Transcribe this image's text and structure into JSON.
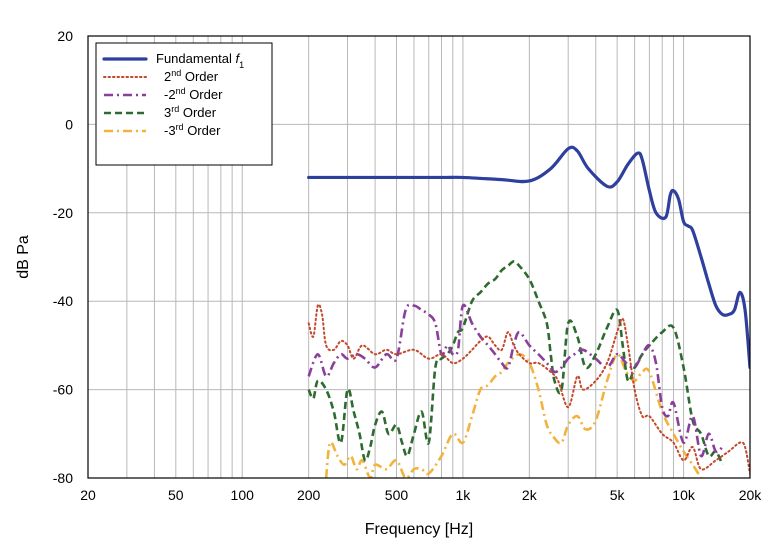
{
  "chart_data": {
    "type": "line",
    "x_scale": "log",
    "xlim": [
      20,
      20000
    ],
    "ylim": [
      -80,
      20
    ],
    "xlabel": "Frequency [Hz]",
    "ylabel": "dB Pa",
    "grid": true,
    "legend_position": "top-left",
    "x_ticks": [
      20,
      50,
      100,
      200,
      500,
      1000,
      2000,
      5000,
      10000,
      20000
    ],
    "x_tick_labels": [
      "20",
      "50",
      "100",
      "200",
      "500",
      "1k",
      "2k",
      "5k",
      "10k",
      "20k"
    ],
    "y_ticks": [
      -80,
      -60,
      -40,
      -20,
      0,
      20
    ],
    "y_tick_labels": [
      "-80",
      "-60",
      "-40",
      "-20",
      "0",
      "20"
    ],
    "series": [
      {
        "name": "Fundamental f1",
        "legend": {
          "main": "Fundamental ",
          "italic": "f",
          "sub": "1"
        },
        "color": "#2e3f9e",
        "dash": "solid",
        "x": [
          200,
          300,
          500,
          800,
          1000,
          1500,
          2000,
          2500,
          3000,
          3300,
          3700,
          4500,
          5000,
          5600,
          6200,
          6500,
          7000,
          7500,
          8300,
          8700,
          9000,
          9500,
          10000,
          10500,
          11000,
          12000,
          13000,
          14000,
          15000,
          16000,
          17000,
          18000,
          19000,
          20000
        ],
        "y": [
          -12,
          -12,
          -12,
          -12,
          -12,
          -12.5,
          -12.8,
          -10,
          -5.5,
          -6,
          -10,
          -14,
          -13,
          -9,
          -6.5,
          -8,
          -15,
          -20,
          -21,
          -16,
          -15,
          -17,
          -22,
          -23,
          -24,
          -30,
          -36,
          -41,
          -43,
          -43,
          -42,
          -38,
          -42,
          -55
        ]
      },
      {
        "name": "2nd Order",
        "legend": {
          "pre": "2",
          "sup": "nd",
          "post": " Order"
        },
        "color": "#c4482a",
        "dash": "dotted",
        "x": [
          200,
          210,
          220,
          230,
          240,
          260,
          280,
          300,
          320,
          350,
          400,
          450,
          500,
          600,
          700,
          800,
          900,
          1000,
          1100,
          1200,
          1300,
          1400,
          1500,
          1600,
          1700,
          1800,
          2000,
          2200,
          2500,
          2700,
          3000,
          3300,
          3500,
          4000,
          4500,
          5000,
          5300,
          5600,
          6000,
          6500,
          7000,
          8000,
          9000,
          10000,
          11000,
          12000,
          14000,
          16000,
          18000,
          19000,
          20000
        ],
        "y": [
          -45,
          -48,
          -41,
          -43,
          -50,
          -51,
          -49,
          -50,
          -53,
          -50,
          -52,
          -51,
          -52,
          -51,
          -53,
          -52,
          -54,
          -53,
          -51,
          -49,
          -48,
          -50,
          -51,
          -47,
          -50,
          -52,
          -54,
          -54,
          -56,
          -58,
          -64,
          -57,
          -60,
          -58,
          -54,
          -47,
          -44,
          -50,
          -60,
          -66,
          -66,
          -70,
          -72,
          -76,
          -73,
          -78,
          -76,
          -74,
          -72,
          -73,
          -79
        ]
      },
      {
        "name": "-2nd Order",
        "legend": {
          "pre": "-2",
          "sup": "nd",
          "post": " Order"
        },
        "color": "#8a3f9b",
        "dash": "dash-dot",
        "x": [
          200,
          220,
          240,
          260,
          280,
          300,
          330,
          360,
          400,
          450,
          500,
          550,
          600,
          650,
          700,
          750,
          800,
          850,
          900,
          950,
          1000,
          1100,
          1200,
          1300,
          1400,
          1500,
          1600,
          1700,
          1800,
          2000,
          2200,
          2400,
          2600,
          2800,
          3000,
          3200,
          3500,
          4000,
          4500,
          5000,
          5500,
          6000,
          6500,
          7000,
          7500,
          8000,
          8500,
          9000,
          10000,
          11000,
          12000,
          13000,
          14000,
          15000
        ],
        "y": [
          -57,
          -52,
          -57,
          -54,
          -52,
          -53,
          -52,
          -53,
          -55,
          -52,
          -53,
          -42,
          -41,
          -42,
          -43,
          -45,
          -52,
          -50,
          -52,
          -51,
          -41,
          -45,
          -48,
          -50,
          -52,
          -54,
          -55,
          -50,
          -47,
          -50,
          -52,
          -54,
          -56,
          -55,
          -53,
          -52,
          -51,
          -53,
          -55,
          -52,
          -54,
          -55,
          -52,
          -50,
          -54,
          -64,
          -66,
          -63,
          -72,
          -66,
          -75,
          -70,
          -74,
          -73
        ]
      },
      {
        "name": "3rd Order",
        "legend": {
          "pre": "3",
          "sup": "rd",
          "post": " Order"
        },
        "color": "#2e6b30",
        "dash": "dashed",
        "x": [
          200,
          210,
          220,
          240,
          260,
          280,
          300,
          320,
          340,
          360,
          380,
          400,
          430,
          460,
          500,
          530,
          560,
          600,
          650,
          700,
          750,
          800,
          850,
          900,
          950,
          1000,
          1100,
          1200,
          1300,
          1400,
          1500,
          1600,
          1700,
          1800,
          2000,
          2200,
          2400,
          2500,
          2600,
          2800,
          3000,
          3300,
          3600,
          4000,
          4500,
          5000,
          5300,
          5600,
          6000,
          6500,
          7000,
          8000,
          9000,
          10000,
          11000,
          12000,
          13000,
          14000,
          15000
        ],
        "y": [
          -60,
          -62,
          -58,
          -60,
          -65,
          -72,
          -60,
          -65,
          -70,
          -76,
          -73,
          -68,
          -65,
          -70,
          -68,
          -72,
          -75,
          -70,
          -65,
          -72,
          -55,
          -53,
          -52,
          -50,
          -47,
          -46,
          -40,
          -38,
          -36,
          -35,
          -33,
          -32,
          -31,
          -32,
          -35,
          -40,
          -45,
          -52,
          -58,
          -60,
          -45,
          -48,
          -55,
          -52,
          -46,
          -42,
          -50,
          -58,
          -55,
          -52,
          -50,
          -47,
          -46,
          -55,
          -67,
          -70,
          -75,
          -74,
          -77
        ]
      },
      {
        "name": "-3rd Order",
        "legend": {
          "pre": "-3",
          "sup": "rd",
          "post": " Order"
        },
        "color": "#f2b33d",
        "dash": "dash-dot",
        "x": [
          240,
          250,
          270,
          290,
          310,
          330,
          350,
          380,
          400,
          450,
          500,
          550,
          600,
          650,
          700,
          800,
          900,
          1000,
          1100,
          1200,
          1300,
          1400,
          1500,
          1600,
          1800,
          2000,
          2200,
          2400,
          2600,
          2800,
          3000,
          3300,
          3600,
          4000,
          4500,
          5000,
          5500,
          6000,
          6500,
          7000,
          8000,
          9000,
          10000,
          11000,
          12000
        ],
        "y": [
          -80,
          -72,
          -75,
          -77,
          -75,
          -78,
          -76,
          -80,
          -77,
          -78,
          -76,
          -80,
          -78,
          -78,
          -79,
          -75,
          -70,
          -72,
          -66,
          -60,
          -59,
          -57,
          -56,
          -54,
          -52,
          -54,
          -60,
          -68,
          -71,
          -72,
          -68,
          -66,
          -69,
          -67,
          -58,
          -52,
          -56,
          -58,
          -56,
          -56,
          -65,
          -70,
          -74,
          -77,
          -80
        ]
      }
    ]
  }
}
